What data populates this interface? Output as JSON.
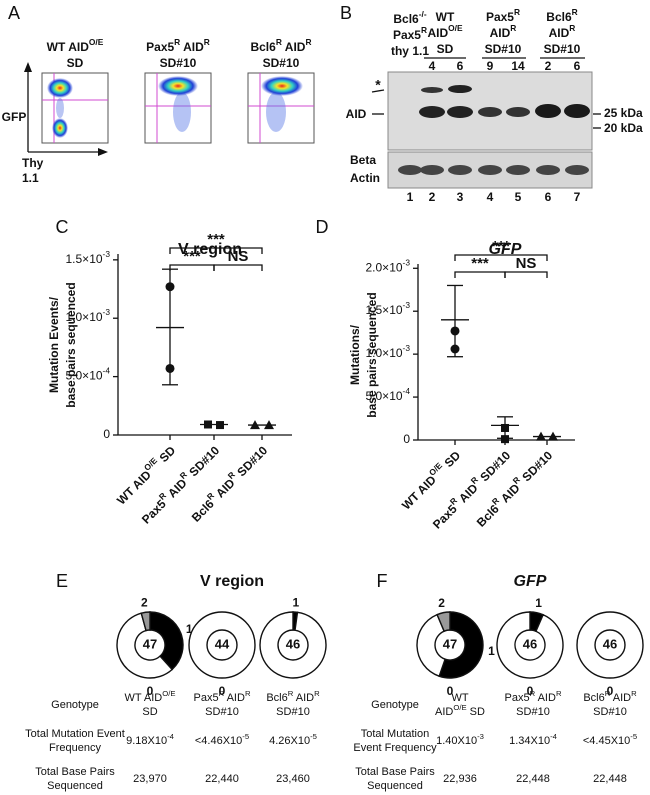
{
  "panel_labels": [
    "A",
    "B",
    "C",
    "D",
    "E",
    "F"
  ],
  "panel_a": {
    "y_label": "GFP",
    "x_label": [
      "Thy",
      "1.1"
    ],
    "plots": [
      {
        "title": [
          [
            "WT AID",
            "O/E"
          ],
          "SD"
        ]
      },
      {
        "title": [
          [
            "Pax5",
            "R",
            " AID",
            "R"
          ],
          "SD#10"
        ]
      },
      {
        "title": [
          [
            "Bcl6",
            "R",
            " AID",
            "R"
          ],
          "SD#10"
        ]
      }
    ]
  },
  "panel_b": {
    "header_left": [
      [
        "Bcl6",
        "-/-"
      ],
      [
        "Pax5",
        "R"
      ],
      "thy 1.1"
    ],
    "groups": [
      {
        "label": [
          "WT",
          [
            "AID",
            "O/E"
          ],
          "SD"
        ],
        "lanes": [
          4,
          6
        ]
      },
      {
        "label": [
          [
            "Pax5",
            "R"
          ],
          [
            "AID",
            "R"
          ],
          "SD#10"
        ],
        "lanes": [
          9,
          14
        ]
      },
      {
        "label": [
          [
            "Bcl6",
            "R"
          ],
          [
            "AID",
            "R"
          ],
          "SD#10"
        ],
        "lanes": [
          2,
          6
        ]
      }
    ],
    "bands": [
      "*",
      "AID"
    ],
    "markers": [
      "25 kDa",
      "20 kDa"
    ],
    "loading_control": [
      "Beta",
      "Actin"
    ],
    "lane_numbers": [
      1,
      2,
      3,
      4,
      5,
      6,
      7
    ]
  },
  "chart_data": [
    {
      "type": "scatter",
      "title": "V region",
      "title_italic": false,
      "color": "#111111",
      "y_label": [
        "Mutation Events/",
        "base pairs sequenced"
      ],
      "categories": [
        [
          "WT AID",
          "O/E",
          " SD"
        ],
        [
          "Pax5",
          "R",
          " AID",
          "R",
          " SD#10"
        ],
        [
          "Bcl6",
          "R",
          " AID",
          "R",
          " SD#10"
        ]
      ],
      "markers": [
        "circle",
        "square",
        "triangle"
      ],
      "groups": [
        {
          "values": [
            0.00127,
            0.00057
          ],
          "mean": 0.00092,
          "error_range": [
            0.00043,
            0.00142
          ]
        },
        {
          "values": [
            9e-05,
            8.5e-05
          ],
          "mean": 9e-05
        },
        {
          "values": [
            8.5e-05,
            8.5e-05
          ],
          "mean": 8.5e-05
        }
      ],
      "significance": [
        "***",
        "***",
        "NS"
      ],
      "ylim": [
        0,
        0.00155
      ],
      "yticks": [
        0,
        {
          "value": 0.0005,
          "label": [
            "5.0×10",
            "-4"
          ]
        },
        {
          "value": 0.001,
          "label": [
            "1.0×10",
            "-3"
          ]
        },
        {
          "value": 0.0015,
          "label": [
            "1.5×10",
            "-3"
          ]
        }
      ]
    },
    {
      "type": "scatter",
      "title": "GFP",
      "title_italic": true,
      "color": "#111111",
      "y_label": [
        "Mutations/",
        "base pairs sequenced"
      ],
      "categories": [
        [
          "WT AID",
          "O/E",
          " SD"
        ],
        [
          "Pax5",
          "R",
          " AID",
          "R",
          " SD#10"
        ],
        [
          "Bcl6",
          "R",
          " AID",
          "R",
          " SD#10"
        ]
      ],
      "markers": [
        "circle",
        "square",
        "triangle"
      ],
      "groups": [
        {
          "values": [
            0.00127,
            0.00106
          ],
          "mean": 0.0014,
          "error_range": [
            0.00097,
            0.0018
          ]
        },
        {
          "values": [
            0.00014,
            1e-05
          ],
          "mean": 0.00017,
          "error_range": [
            2e-05,
            0.00027
          ]
        },
        {
          "values": [
            4e-05,
            4e-05
          ],
          "mean": 4e-05
        }
      ],
      "significance": [
        "***",
        "***",
        "NS"
      ],
      "ylim": [
        0,
        0.00205
      ],
      "yticks": [
        0,
        {
          "value": 0.0005,
          "label": [
            "5.0×10",
            "-4"
          ]
        },
        {
          "value": 0.001,
          "label": [
            "1.0×10",
            "-3"
          ]
        },
        {
          "value": 0.0015,
          "label": [
            "1.5×10",
            "-3"
          ]
        },
        {
          "value": 0.002,
          "label": [
            "2.0×10",
            "-3"
          ]
        }
      ]
    },
    {
      "type": "donut",
      "title": "V region",
      "title_italic": false,
      "donuts": [
        {
          "center": 47,
          "categories": [
            "1",
            "0",
            "2"
          ],
          "values": [
            18,
            27,
            2
          ],
          "colors": [
            "#000000",
            "#ffffff",
            "#999999"
          ]
        },
        {
          "center": 44,
          "categories": [
            "0"
          ],
          "values": [
            44
          ],
          "colors": [
            "#ffffff"
          ]
        },
        {
          "center": 46,
          "categories": [
            "1",
            null
          ],
          "values": [
            1,
            45
          ],
          "colors": [
            "#000000",
            "#ffffff"
          ]
        }
      ],
      "table": {
        "row_labels": [
          [
            "Genotype"
          ],
          [
            "Total Mutation Event",
            "Frequency"
          ],
          [
            "Total Base Pairs",
            "Sequenced"
          ]
        ],
        "genotype": [
          [
            [
              "WT AID",
              "O/E"
            ],
            "SD"
          ],
          [
            [
              "Pax5",
              "R",
              " AID",
              "R"
            ],
            "SD#10"
          ],
          [
            [
              "Bcl6",
              "R",
              " AID",
              "R"
            ],
            "SD#10"
          ]
        ],
        "frequency": [
          [
            "9.18X10",
            "-4"
          ],
          [
            "<4.46X10",
            "-5"
          ],
          [
            "4.26X10",
            "-5"
          ]
        ],
        "base_pairs": [
          "23,970",
          "22,440",
          "23,460"
        ]
      }
    },
    {
      "type": "donut",
      "title": "GFP",
      "title_italic": true,
      "donuts": [
        {
          "center": 47,
          "categories": [
            "1",
            "0",
            "2"
          ],
          "values": [
            26,
            18,
            3
          ],
          "colors": [
            "#000000",
            "#ffffff",
            "#999999"
          ]
        },
        {
          "center": 46,
          "categories": [
            "1",
            "0"
          ],
          "values": [
            3,
            43
          ],
          "colors": [
            "#000000",
            "#ffffff"
          ]
        },
        {
          "center": 46,
          "categories": [
            "0"
          ],
          "values": [
            46
          ],
          "colors": [
            "#ffffff"
          ]
        }
      ],
      "table": {
        "row_labels": [
          [
            "Genotype"
          ],
          [
            "Total Mutation",
            "Event Frequency"
          ],
          [
            "Total Base Pairs",
            "Sequenced"
          ]
        ],
        "genotype": [
          [
            "WT",
            [
              "AID",
              "O/E",
              " SD"
            ]
          ],
          [
            [
              "Pax5",
              "R",
              " AID",
              "R"
            ],
            "SD#10"
          ],
          [
            [
              "Bcl6",
              "R",
              " AID",
              "R"
            ],
            "SD#10"
          ]
        ],
        "frequency": [
          [
            "1.40X10",
            "-3"
          ],
          [
            "1.34X10",
            "-4"
          ],
          [
            "<4.45X10",
            "-5"
          ]
        ],
        "base_pairs": [
          "22,936",
          "22,448",
          "22,448"
        ]
      }
    }
  ]
}
